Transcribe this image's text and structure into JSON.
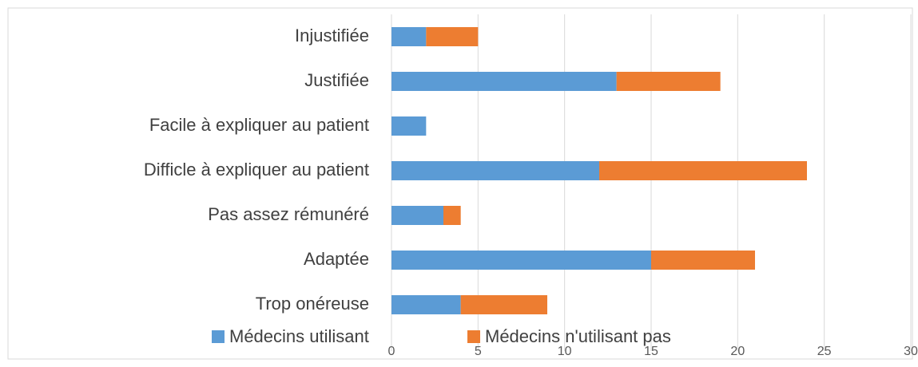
{
  "chart_data": {
    "type": "stacked_bar_horizontal",
    "categories": [
      "Injustifiée",
      "Justifiée",
      "Facile à expliquer au patient",
      "Difficle à expliquer au patient",
      "Pas assez rémunéré",
      "Adaptée",
      "Trop onéreuse"
    ],
    "series": [
      {
        "name": "Médecins utilisant",
        "color": "#5b9bd5",
        "values": [
          2,
          13,
          2,
          12,
          3,
          15,
          4
        ]
      },
      {
        "name": "Médecins n'utilisant pas",
        "color": "#ed7d31",
        "values": [
          3,
          6,
          0,
          12,
          1,
          6,
          5
        ]
      }
    ],
    "xlim": [
      0,
      30
    ],
    "xticks": [
      0,
      5,
      10,
      15,
      20,
      25,
      30
    ],
    "grid": true,
    "legend": "bottom"
  }
}
